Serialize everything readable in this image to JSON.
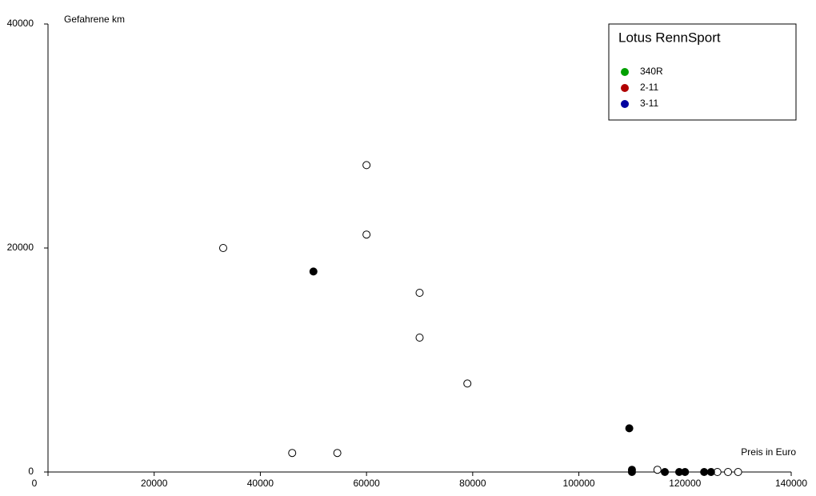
{
  "chart_data": {
    "type": "scatter",
    "x_label": "Preis in Euro",
    "y_label": "Gefahrene km",
    "xlim": [
      0,
      140000
    ],
    "xticks": [
      0,
      20000,
      40000,
      60000,
      80000,
      100000,
      120000,
      140000
    ],
    "ylim": [
      0,
      40000
    ],
    "yticks": [
      0,
      20000,
      40000
    ],
    "series": [
      {
        "marker": "open",
        "color": "#000000",
        "x": [
          33000,
          60000,
          60000,
          70000,
          70000,
          79000,
          46000,
          54500,
          114800,
          126100,
          128100,
          130000
        ],
        "values": [
          20000,
          27400,
          21200,
          16000,
          12000,
          7900,
          1700,
          1700,
          200,
          0,
          0,
          0
        ]
      },
      {
        "marker": "filled",
        "color": "#000000",
        "x": [
          50000,
          109500,
          110000,
          110000,
          116200,
          118900,
          120000,
          123600,
          124900
        ],
        "values": [
          17900,
          3900,
          200,
          0,
          0,
          0,
          0,
          0,
          0
        ]
      }
    ],
    "legend": {
      "title": "Lotus RennSport",
      "position": "upper right",
      "items": [
        {
          "name": "340R",
          "color": "#00a000"
        },
        {
          "name": "2-11",
          "color": "#b00000"
        },
        {
          "name": "3-11",
          "color": "#0000a0"
        }
      ]
    }
  }
}
